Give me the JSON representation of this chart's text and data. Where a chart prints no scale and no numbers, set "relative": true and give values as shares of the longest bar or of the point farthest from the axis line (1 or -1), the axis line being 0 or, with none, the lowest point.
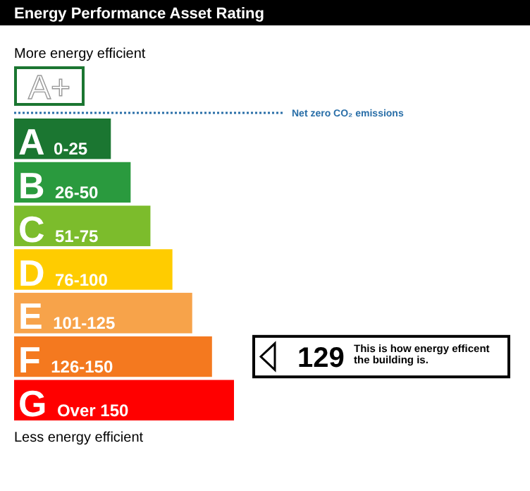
{
  "chart_data": {
    "type": "bar",
    "orientation": "horizontal",
    "relative": true,
    "title": "Energy Performance Asset Rating",
    "categories": [
      "A 0-25",
      "B 26-50",
      "C 51-75",
      "D 76-100",
      "E 101-125",
      "F 126-150",
      "G Over 150"
    ],
    "values": [
      0.44,
      0.53,
      0.62,
      0.72,
      0.81,
      0.9,
      1
    ],
    "colors": [
      "#1b7631",
      "#2a9a3e",
      "#7cbc2c",
      "#ffcc00",
      "#f7a34a",
      "#f4791f",
      "#ff0000"
    ],
    "annotations": [
      "More energy efficient",
      "A+",
      "Net zero CO₂ emissions",
      "Less energy efficient",
      "129",
      "This is how energy efficent the building is."
    ]
  }
}
